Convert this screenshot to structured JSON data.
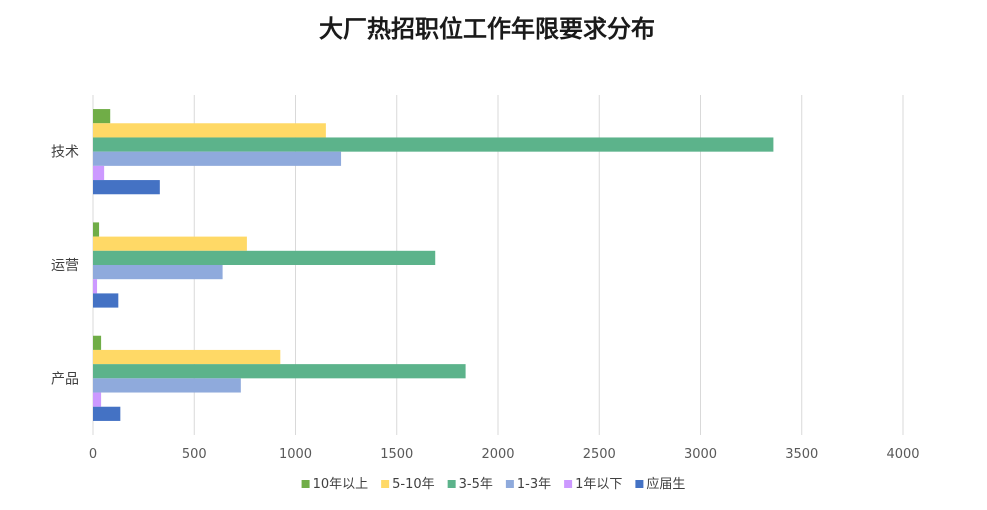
{
  "chart_data": {
    "type": "bar",
    "orientation": "horizontal",
    "title": "大厂热招职位工作年限要求分布",
    "categories": [
      "技术",
      "运营",
      "产品"
    ],
    "xlim": [
      0,
      4000
    ],
    "xticks": [
      0,
      500,
      1000,
      1500,
      2000,
      2500,
      3000,
      3500,
      4000
    ],
    "grid": true,
    "legend_position": "bottom",
    "series": [
      {
        "name": "10年以上",
        "color": "#70ad47",
        "values": [
          85,
          30,
          40
        ]
      },
      {
        "name": "5-10年",
        "color": "#ffd966",
        "values": [
          1150,
          760,
          925
        ]
      },
      {
        "name": "3-5年",
        "color": "#5cb38b",
        "values": [
          3360,
          1690,
          1840
        ]
      },
      {
        "name": "1-3年",
        "color": "#8faadc",
        "values": [
          1225,
          640,
          730
        ]
      },
      {
        "name": "1年以下",
        "color": "#cc99ff",
        "values": [
          55,
          20,
          40
        ]
      },
      {
        "name": "应届生",
        "color": "#4472c4",
        "values": [
          330,
          125,
          135
        ]
      }
    ]
  }
}
